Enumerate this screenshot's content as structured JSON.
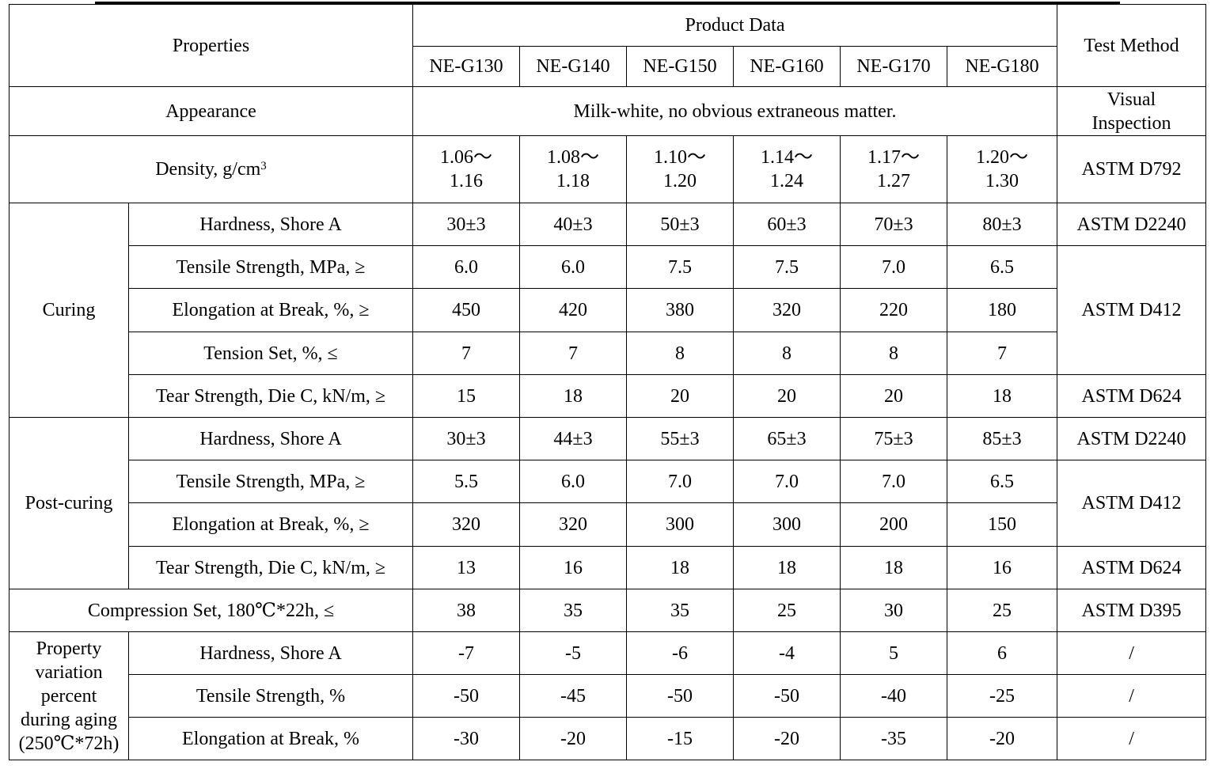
{
  "header": {
    "properties": "Properties",
    "product_data": "Product Data",
    "test_method": "Test Method",
    "products": [
      "NE-G130",
      "NE-G140",
      "NE-G150",
      "NE-G160",
      "NE-G170",
      "NE-G180"
    ]
  },
  "appearance": {
    "label": "Appearance",
    "value": "Milk-white, no obvious extraneous matter.",
    "method_line1": "Visual",
    "method_line2": "Inspection"
  },
  "density": {
    "label": "Density, g/cm",
    "sup": "3",
    "ranges": [
      [
        "1.06～",
        "1.16"
      ],
      [
        "1.08～",
        "1.18"
      ],
      [
        "1.10～",
        "1.20"
      ],
      [
        "1.14～",
        "1.24"
      ],
      [
        "1.17～",
        "1.27"
      ],
      [
        "1.20～",
        "1.30"
      ]
    ],
    "method": "ASTM D792"
  },
  "curing": {
    "group": "Curing",
    "rows": [
      {
        "label": "Hardness, Shore A",
        "values": [
          "30±3",
          "40±3",
          "50±3",
          "60±3",
          "70±3",
          "80±3"
        ],
        "method": "ASTM D2240"
      },
      {
        "label": "Tensile Strength, MPa, ≥",
        "values": [
          "6.0",
          "6.0",
          "7.5",
          "7.5",
          "7.0",
          "6.5"
        ],
        "method": "ASTM D412"
      },
      {
        "label": "Elongation at Break, %, ≥",
        "values": [
          "450",
          "420",
          "380",
          "320",
          "220",
          "180"
        ]
      },
      {
        "label": "Tension Set, %, ≤",
        "values": [
          "7",
          "7",
          "8",
          "8",
          "8",
          "7"
        ]
      },
      {
        "label": "Tear Strength, Die C, kN/m, ≥",
        "values": [
          "15",
          "18",
          "20",
          "20",
          "20",
          "18"
        ],
        "method": "ASTM D624"
      }
    ]
  },
  "post_curing": {
    "group": "Post-curing",
    "rows": [
      {
        "label": "Hardness, Shore A",
        "values": [
          "30±3",
          "44±3",
          "55±3",
          "65±3",
          "75±3",
          "85±3"
        ],
        "method": "ASTM D2240"
      },
      {
        "label": "Tensile Strength, MPa, ≥",
        "values": [
          "5.5",
          "6.0",
          "7.0",
          "7.0",
          "7.0",
          "6.5"
        ],
        "method": "ASTM D412"
      },
      {
        "label": "Elongation at Break, %, ≥",
        "values": [
          "320",
          "320",
          "300",
          "300",
          "200",
          "150"
        ]
      },
      {
        "label": "Tear Strength, Die C, kN/m, ≥",
        "values": [
          "13",
          "16",
          "18",
          "18",
          "18",
          "16"
        ],
        "method": "ASTM D624"
      }
    ]
  },
  "compression": {
    "label": "Compression Set, 180℃*22h, ≤",
    "values": [
      "38",
      "35",
      "35",
      "25",
      "30",
      "25"
    ],
    "method": "ASTM D395"
  },
  "aging": {
    "group_lines": [
      "Property",
      "variation",
      "percent",
      "during aging",
      "(250℃*72h)"
    ],
    "rows": [
      {
        "label": "Hardness, Shore A",
        "values": [
          "-7",
          "-5",
          "-6",
          "-4",
          "5",
          "6"
        ],
        "method": "/"
      },
      {
        "label": "Tensile Strength, %",
        "values": [
          "-50",
          "-45",
          "-50",
          "-50",
          "-40",
          "-25"
        ],
        "method": "/"
      },
      {
        "label": "Elongation at Break, %",
        "values": [
          "-30",
          "-20",
          "-15",
          "-20",
          "-35",
          "-20"
        ],
        "method": "/"
      }
    ]
  }
}
